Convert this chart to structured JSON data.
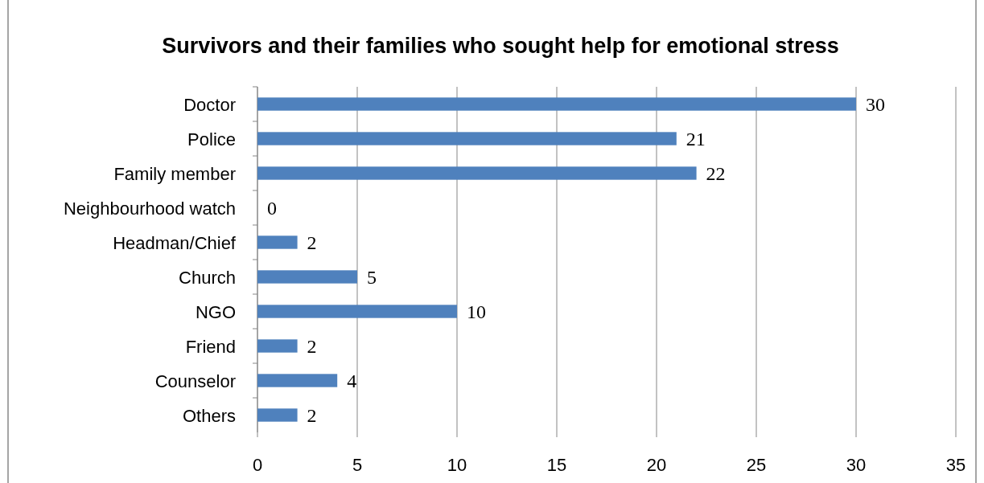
{
  "chart_data": {
    "type": "bar",
    "orientation": "horizontal",
    "title": "Survivors and their families who sought help for emotional stress",
    "categories": [
      "Doctor",
      "Police",
      "Family member",
      "Neighbourhood watch",
      "Headman/Chief",
      "Church",
      "NGO",
      "Friend",
      "Counselor",
      "Others"
    ],
    "values": [
      30,
      21,
      22,
      0,
      2,
      5,
      10,
      2,
      4,
      2
    ],
    "color": "#4f81bd",
    "xlim": [
      0,
      35
    ],
    "xticks": [
      0,
      5,
      10,
      15,
      20,
      25,
      30,
      35
    ],
    "grid": "x",
    "data_labels": true
  }
}
